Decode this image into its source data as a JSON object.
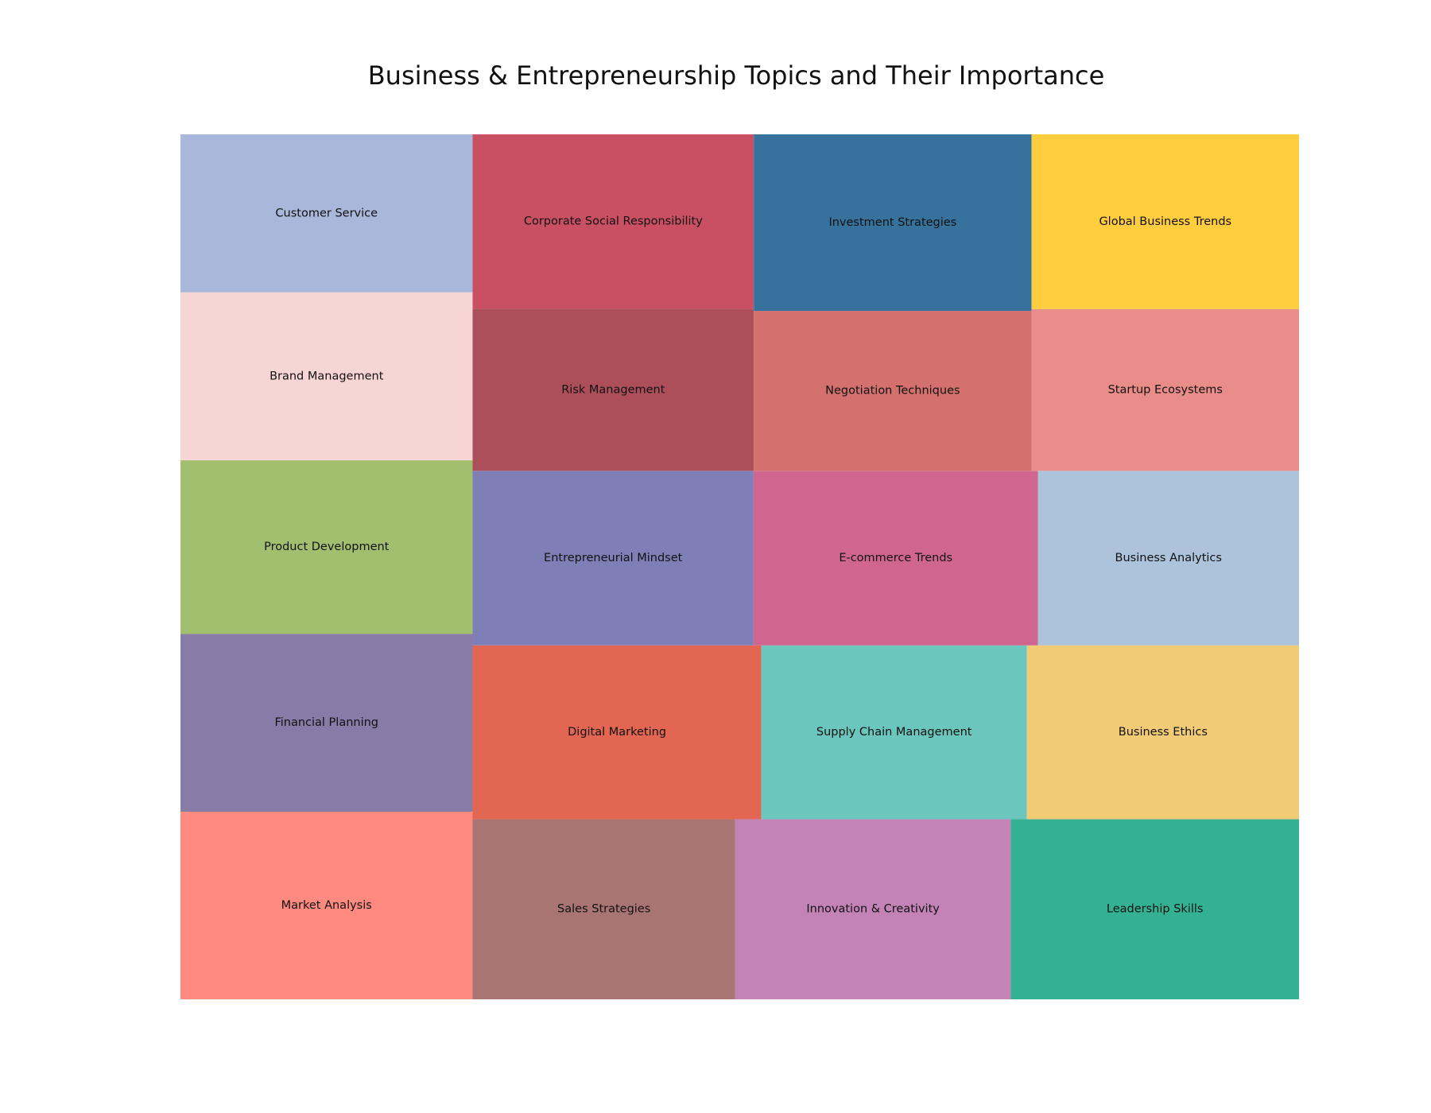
{
  "chart_data": {
    "type": "treemap",
    "title": "Business & Entrepreneurship Topics and Their Importance",
    "xlabel": "",
    "ylabel": "",
    "grid": false,
    "legend": "none",
    "items": [
      {
        "label": "Market Analysis",
        "value": 95,
        "color": "#FF8A80"
      },
      {
        "label": "Financial Planning",
        "value": 90,
        "color": "#887BA8"
      },
      {
        "label": "Product Development",
        "value": 88,
        "color": "#A1BF6F"
      },
      {
        "label": "Brand Management",
        "value": 85,
        "color": "#F7D5D4"
      },
      {
        "label": "Customer Service",
        "value": 80,
        "color": "#A9B8DA"
      },
      {
        "label": "Sales Strategies",
        "value": 82,
        "color": "#A97574"
      },
      {
        "label": "Innovation & Creativity",
        "value": 86,
        "color": "#C383B7"
      },
      {
        "label": "Leadership Skills",
        "value": 90,
        "color": "#34B193"
      },
      {
        "label": "Digital Marketing",
        "value": 87,
        "color": "#E36652"
      },
      {
        "label": "Supply Chain Management",
        "value": 80,
        "color": "#6BC6BD"
      },
      {
        "label": "Business Ethics",
        "value": 82,
        "color": "#F1CB76"
      },
      {
        "label": "Entrepreneurial Mindset",
        "value": 85,
        "color": "#7E7FB6"
      },
      {
        "label": "E-commerce Trends",
        "value": 86,
        "color": "#D06690"
      },
      {
        "label": "Business Analytics",
        "value": 79,
        "color": "#ADC3DB"
      },
      {
        "label": "Risk Management",
        "value": 79,
        "color": "#AD4F5B"
      },
      {
        "label": "Corporate Social Responsibility",
        "value": 85,
        "color": "#C95063"
      },
      {
        "label": "Negotiation Techniques",
        "value": 77,
        "color": "#D4706D"
      },
      {
        "label": "Investment Strategies",
        "value": 85,
        "color": "#37729D"
      },
      {
        "label": "Startup Ecosystems",
        "value": 75,
        "color": "#E98C8A"
      },
      {
        "label": "Global Business Trends",
        "value": 81,
        "color": "#FFCD3D"
      }
    ]
  }
}
